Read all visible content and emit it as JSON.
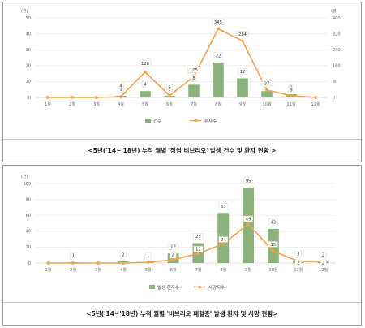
{
  "charts": [
    {
      "caption": "<5년('14~'18년) 누적 월별 '장염 비브리오' 발생 건수 및 환자 현황 >",
      "chart_data": {
        "type": "bar",
        "categories": [
          "1월",
          "2월",
          "3월",
          "4월",
          "5월",
          "6월",
          "7월",
          "8월",
          "9월",
          "10월",
          "11월",
          "12월"
        ],
        "y_unit_left": "(건)",
        "y_unit_right": "(명)",
        "ylim_left": [
          0,
          50
        ],
        "yticks_left": [
          "0",
          "10",
          "20",
          "30",
          "40",
          "50"
        ],
        "ylim_right": [
          0,
          400
        ],
        "yticks_right": [
          "0",
          "80",
          "160",
          "240",
          "320",
          "400"
        ],
        "series": [
          {
            "name": "건수",
            "kind": "bar",
            "axis": "left",
            "color": "#8ab27a",
            "values": [
              0,
              0,
              0,
              1,
              4,
              1,
              8,
              22,
              12,
              4,
              2,
              0
            ],
            "labels": [
              "",
              "",
              "",
              "1",
              "4",
              "1",
              "8",
              "22",
              "12",
              "4",
              "2",
              ""
            ]
          },
          {
            "name": "환자수",
            "kind": "line",
            "axis": "right",
            "color": "#f4a14a",
            "values": [
              0,
              0,
              0,
              4,
              128,
              9,
              105,
              345,
              284,
              37,
              9,
              0
            ],
            "labels": [
              "",
              "",
              "",
              "4",
              "128",
              "9",
              "105",
              "345",
              "284",
              "37",
              "9",
              ""
            ]
          }
        ],
        "legend_position": "bottom-center"
      }
    },
    {
      "caption": "<5년('14~'18년) 누적 월별 '비브리오 패혈증' 발생 환자 및 사망 현황>",
      "chart_data": {
        "type": "bar",
        "categories": [
          "1월",
          "2월",
          "3월",
          "4월",
          "5월",
          "6월",
          "7월",
          "8월",
          "9월",
          "10월",
          "11월",
          "12월"
        ],
        "y_unit_left": "(건)",
        "ylim_left": [
          0,
          100
        ],
        "yticks_left": [
          "0",
          "20",
          "40",
          "60",
          "80",
          "100"
        ],
        "series": [
          {
            "name": "발생 환자수",
            "kind": "bar",
            "axis": "left",
            "color": "#8ab27a",
            "values": [
              0,
              1,
              0,
              2,
              1,
              12,
              25,
              63,
              95,
              43,
              3,
              2
            ],
            "labels": [
              "",
              "1",
              "",
              "2",
              "1",
              "12",
              "25",
              "63",
              "95",
              "43",
              "3",
              "2"
            ]
          },
          {
            "name": "사망자수",
            "kind": "line",
            "axis": "left",
            "color": "#f4a14a",
            "values": [
              0,
              0,
              0,
              0,
              1,
              4,
              12,
              24,
              49,
              15,
              2,
              2
            ],
            "labels": [
              "",
              "",
              "",
              "",
              "",
              "4",
              "12",
              "24",
              "49",
              "15",
              "2",
              "2"
            ]
          }
        ],
        "legend_position": "bottom-center"
      }
    }
  ]
}
